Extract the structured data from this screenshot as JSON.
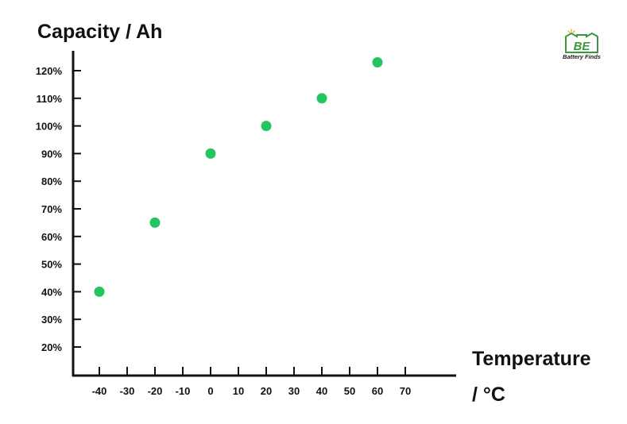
{
  "chart_data": {
    "type": "scatter",
    "title": "",
    "ylabel": "Capacity / Ah",
    "xlabel_lines": [
      "Temperature",
      "/ °C"
    ],
    "x_ticks": [
      "-40",
      "-30",
      "-20",
      "-10",
      "0",
      "10",
      "20",
      "30",
      "40",
      "50",
      "60",
      "70"
    ],
    "y_ticks": [
      "20%",
      "30%",
      "40%",
      "50%",
      "60%",
      "70%",
      "80%",
      "90%",
      "100%",
      "110%",
      "120%"
    ],
    "xlim": [
      -50,
      85
    ],
    "ylim": [
      10,
      132
    ],
    "grid": false,
    "legend": "none",
    "point_color": "#22c55e",
    "points": [
      {
        "x": -40,
        "y": 40
      },
      {
        "x": -20,
        "y": 65
      },
      {
        "x": 0,
        "y": 90
      },
      {
        "x": 20,
        "y": 100
      },
      {
        "x": 40,
        "y": 110
      },
      {
        "x": 60,
        "y": 123
      }
    ]
  },
  "logo": {
    "letters": "BE",
    "brand": "Battery  Finds",
    "color": "#3a9a3a"
  }
}
